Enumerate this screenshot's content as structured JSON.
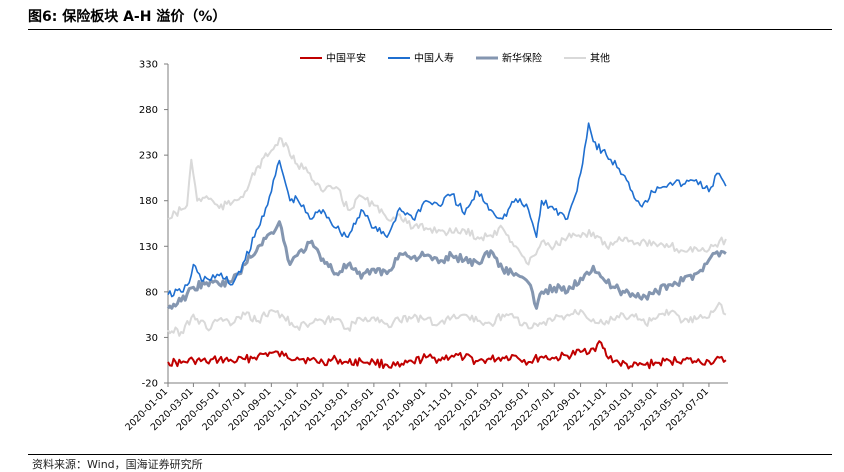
{
  "figure_title": "图6:  保险板块 A-H 溢价（%）",
  "source_note": "资料来源：Wind，国海证券研究所",
  "chart_data": {
    "type": "line",
    "title": "",
    "xlabel": "",
    "ylabel": "",
    "ylim": [
      -20,
      330
    ],
    "yticks": [
      -20,
      30,
      80,
      130,
      180,
      230,
      280,
      330
    ],
    "xlim": [
      "2020-01-01",
      "2023-08-15"
    ],
    "xticks": [
      "2020-01-01",
      "2020-03-01",
      "2020-05-01",
      "2020-07-01",
      "2020-09-01",
      "2020-11-01",
      "2021-01-01",
      "2021-03-01",
      "2021-05-01",
      "2021-07-01",
      "2021-09-01",
      "2021-11-01",
      "2022-01-01",
      "2022-03-01",
      "2022-05-01",
      "2022-07-01",
      "2022-09-01",
      "2022-11-01",
      "2023-01-01",
      "2023-03-01",
      "2023-05-01",
      "2023-07-01"
    ],
    "grid": false,
    "legend_position": "top-center",
    "series": [
      {
        "name": "中国平安",
        "color": "#c00000",
        "width": 2,
        "x": [
          "2020-01-01",
          "2020-02-01",
          "2020-03-01",
          "2020-04-01",
          "2020-05-01",
          "2020-06-01",
          "2020-07-01",
          "2020-08-01",
          "2020-09-01",
          "2020-10-01",
          "2020-11-01",
          "2020-12-01",
          "2021-01-01",
          "2021-02-01",
          "2021-03-01",
          "2021-04-01",
          "2021-05-01",
          "2021-06-01",
          "2021-07-01",
          "2021-08-01",
          "2021-09-01",
          "2021-10-01",
          "2021-11-01",
          "2021-12-01",
          "2022-01-01",
          "2022-02-01",
          "2022-03-01",
          "2022-04-01",
          "2022-05-01",
          "2022-06-01",
          "2022-07-01",
          "2022-08-01",
          "2022-09-01",
          "2022-10-01",
          "2022-10-20",
          "2022-11-01",
          "2022-12-01",
          "2023-01-01",
          "2023-02-01",
          "2023-03-01",
          "2023-04-01",
          "2023-05-01",
          "2023-06-01",
          "2023-07-01",
          "2023-08-10"
        ],
        "y": [
          3,
          2,
          5,
          3,
          6,
          4,
          6,
          10,
          13,
          10,
          8,
          5,
          3,
          6,
          2,
          4,
          3,
          0,
          -2,
          3,
          8,
          6,
          10,
          8,
          4,
          6,
          8,
          10,
          3,
          9,
          7,
          10,
          14,
          18,
          24,
          10,
          2,
          -2,
          0,
          2,
          4,
          6,
          3,
          4,
          5
        ]
      },
      {
        "name": "中国人寿",
        "color": "#1f6fd0",
        "width": 1.6,
        "x": [
          "2020-01-01",
          "2020-02-01",
          "2020-02-20",
          "2020-03-01",
          "2020-03-20",
          "2020-04-01",
          "2020-05-01",
          "2020-06-01",
          "2020-07-01",
          "2020-08-01",
          "2020-09-01",
          "2020-09-20",
          "2020-10-15",
          "2020-11-01",
          "2020-12-01",
          "2021-01-01",
          "2021-02-01",
          "2021-03-01",
          "2021-04-01",
          "2021-05-01",
          "2021-06-01",
          "2021-07-01",
          "2021-08-01",
          "2021-09-01",
          "2021-10-01",
          "2021-11-01",
          "2021-12-01",
          "2022-01-01",
          "2022-02-01",
          "2022-03-01",
          "2022-04-01",
          "2022-05-01",
          "2022-05-20",
          "2022-06-01",
          "2022-07-01",
          "2022-08-01",
          "2022-08-15",
          "2022-09-01",
          "2022-09-20",
          "2022-10-01",
          "2022-11-01",
          "2022-12-01",
          "2023-01-01",
          "2023-01-20",
          "2023-02-01",
          "2023-03-01",
          "2023-04-01",
          "2023-05-01",
          "2023-06-01",
          "2023-07-01",
          "2023-07-20",
          "2023-08-10"
        ],
        "y": [
          77,
          80,
          90,
          110,
          92,
          95,
          98,
          88,
          115,
          150,
          190,
          224,
          180,
          182,
          160,
          170,
          150,
          140,
          170,
          150,
          140,
          172,
          160,
          180,
          175,
          187,
          165,
          190,
          170,
          160,
          182,
          170,
          140,
          180,
          170,
          160,
          180,
          210,
          265,
          245,
          230,
          215,
          190,
          175,
          180,
          195,
          200,
          198,
          203,
          190,
          210,
          196
        ]
      },
      {
        "name": "新华保险",
        "color": "#8496b0",
        "width": 3,
        "x": [
          "2020-01-01",
          "2020-02-01",
          "2020-03-01",
          "2020-04-01",
          "2020-05-01",
          "2020-06-01",
          "2020-07-01",
          "2020-08-01",
          "2020-09-01",
          "2020-09-20",
          "2020-10-15",
          "2020-11-01",
          "2020-12-01",
          "2021-01-01",
          "2021-02-01",
          "2021-03-01",
          "2021-04-01",
          "2021-05-01",
          "2021-06-01",
          "2021-07-01",
          "2021-08-01",
          "2021-09-01",
          "2021-10-01",
          "2021-11-01",
          "2021-12-01",
          "2022-01-01",
          "2022-02-01",
          "2022-03-01",
          "2022-04-01",
          "2022-05-01",
          "2022-05-20",
          "2022-06-01",
          "2022-07-01",
          "2022-08-01",
          "2022-09-01",
          "2022-10-01",
          "2022-11-01",
          "2022-12-01",
          "2023-01-01",
          "2023-02-01",
          "2023-03-01",
          "2023-04-01",
          "2023-05-01",
          "2023-06-01",
          "2023-07-01",
          "2023-07-20",
          "2023-08-10"
        ],
        "y": [
          62,
          70,
          85,
          90,
          88,
          92,
          110,
          130,
          145,
          157,
          110,
          120,
          134,
          116,
          100,
          110,
          95,
          105,
          100,
          122,
          118,
          120,
          112,
          120,
          115,
          112,
          125,
          105,
          100,
          90,
          62,
          80,
          85,
          80,
          95,
          108,
          90,
          82,
          78,
          75,
          80,
          88,
          92,
          100,
          115,
          124,
          122
        ]
      },
      {
        "name": "其他",
        "color": "#d9d9d9",
        "width": 2,
        "x": [
          "2020-01-01",
          "2020-02-01",
          "2020-02-15",
          "2020-02-25",
          "2020-03-10",
          "2020-04-01",
          "2020-05-01",
          "2020-06-01",
          "2020-07-01",
          "2020-08-01",
          "2020-09-01",
          "2020-09-25",
          "2020-10-15",
          "2020-11-01",
          "2020-12-01",
          "2021-01-01",
          "2021-02-01",
          "2021-03-01",
          "2021-04-01",
          "2021-05-01",
          "2021-06-01",
          "2021-07-01",
          "2021-08-01",
          "2021-09-01",
          "2021-10-01",
          "2021-11-01",
          "2021-12-01",
          "2022-01-01",
          "2022-02-01",
          "2022-03-01",
          "2022-04-01",
          "2022-05-01",
          "2022-06-01",
          "2022-07-01",
          "2022-08-01",
          "2022-09-01",
          "2022-10-01",
          "2022-11-01",
          "2022-12-01",
          "2023-01-01",
          "2023-02-01",
          "2023-03-01",
          "2023-04-01",
          "2023-05-01",
          "2023-06-01",
          "2023-07-01",
          "2023-08-10"
        ],
        "y": [
          160,
          170,
          175,
          225,
          180,
          185,
          172,
          178,
          190,
          218,
          235,
          248,
          230,
          220,
          210,
          190,
          195,
          170,
          185,
          175,
          160,
          165,
          150,
          150,
          148,
          145,
          148,
          140,
          142,
          150,
          130,
          110,
          135,
          130,
          140,
          140,
          145,
          130,
          140,
          136,
          135,
          130,
          130,
          125,
          128,
          126,
          138
        ]
      },
      {
        "name": "",
        "color": "#d9d9d9",
        "width": 2,
        "x": [
          "2020-01-01",
          "2020-02-01",
          "2020-03-01",
          "2020-04-01",
          "2020-05-01",
          "2020-06-01",
          "2020-07-01",
          "2020-08-01",
          "2020-09-01",
          "2020-10-01",
          "2020-11-01",
          "2020-12-01",
          "2021-01-01",
          "2021-02-01",
          "2021-03-01",
          "2021-04-01",
          "2021-05-01",
          "2021-06-01",
          "2021-07-01",
          "2021-08-01",
          "2021-09-01",
          "2021-10-01",
          "2021-11-01",
          "2021-12-01",
          "2022-01-01",
          "2022-02-01",
          "2022-03-01",
          "2022-04-01",
          "2022-05-01",
          "2022-06-01",
          "2022-07-01",
          "2022-08-01",
          "2022-09-01",
          "2022-10-01",
          "2022-11-01",
          "2022-12-01",
          "2023-01-01",
          "2023-02-01",
          "2023-03-01",
          "2023-04-01",
          "2023-05-01",
          "2023-06-01",
          "2023-07-01",
          "2023-07-25",
          "2023-08-10"
        ],
        "y": [
          38,
          36,
          55,
          40,
          50,
          45,
          55,
          48,
          60,
          52,
          42,
          45,
          48,
          50,
          40,
          50,
          52,
          45,
          48,
          52,
          50,
          45,
          52,
          55,
          48,
          45,
          55,
          52,
          40,
          45,
          50,
          55,
          60,
          50,
          48,
          52,
          55,
          45,
          52,
          58,
          48,
          50,
          52,
          68,
          55
        ]
      }
    ]
  }
}
